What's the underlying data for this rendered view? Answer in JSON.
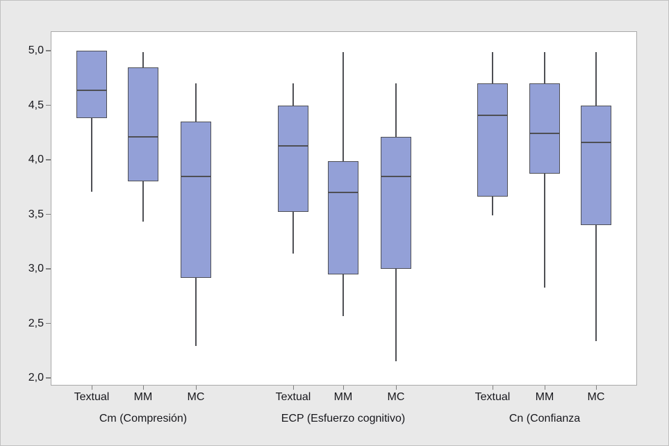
{
  "figure": {
    "background": "#e9e9e9",
    "plot_background": "#ffffff",
    "plot_border_color": "#a8a8a8",
    "outer_border_color": "#c0c0c0"
  },
  "chart_data": {
    "type": "boxplot",
    "title": "",
    "xlabel": "",
    "ylabel": "",
    "grid": false,
    "legend": false,
    "y_axis": {
      "tick_labels": [
        "5,0",
        "4,5",
        "4,0",
        "3,5",
        "3,0",
        "2,5",
        "2,0"
      ],
      "tick_values": [
        5.0,
        4.5,
        4.0,
        3.5,
        3.0,
        2.5,
        2.0
      ],
      "range": [
        1.93,
        5.18
      ],
      "decimal_separator": ","
    },
    "groups": [
      {
        "label": "Cm (Compresión)",
        "boxes": [
          {
            "category": "Textual",
            "min": 3.71,
            "q1": 4.38,
            "median": 4.64,
            "q3": 5.0,
            "max": 5.0
          },
          {
            "category": "MM",
            "min": 3.43,
            "q1": 3.8,
            "median": 4.21,
            "q3": 4.85,
            "max": 4.99
          },
          {
            "category": "MC",
            "min": 2.29,
            "q1": 2.92,
            "median": 3.85,
            "q3": 4.35,
            "max": 4.7
          }
        ]
      },
      {
        "label": "ECP (Esfuerzo cognitivo)",
        "boxes": [
          {
            "category": "Textual",
            "min": 3.14,
            "q1": 3.52,
            "median": 4.13,
            "q3": 4.5,
            "max": 4.7
          },
          {
            "category": "MM",
            "min": 2.57,
            "q1": 2.95,
            "median": 3.7,
            "q3": 3.99,
            "max": 4.99
          },
          {
            "category": "MC",
            "min": 2.15,
            "q1": 3.0,
            "median": 3.85,
            "q3": 4.21,
            "max": 4.7
          }
        ]
      },
      {
        "label": "Cn (Confianza",
        "boxes": [
          {
            "category": "Textual",
            "min": 3.49,
            "q1": 3.66,
            "median": 4.41,
            "q3": 4.7,
            "max": 4.99
          },
          {
            "category": "MM",
            "min": 2.83,
            "q1": 3.87,
            "median": 4.24,
            "q3": 4.7,
            "max": 4.99
          },
          {
            "category": "MC",
            "min": 2.34,
            "q1": 3.4,
            "median": 4.16,
            "q3": 4.5,
            "max": 4.99
          }
        ]
      }
    ],
    "style": {
      "box_fill": "#93a0d7",
      "line_color": "#4e4f54",
      "tick_mark_color": "#7e7e7e",
      "text_color": "#17171c"
    }
  }
}
